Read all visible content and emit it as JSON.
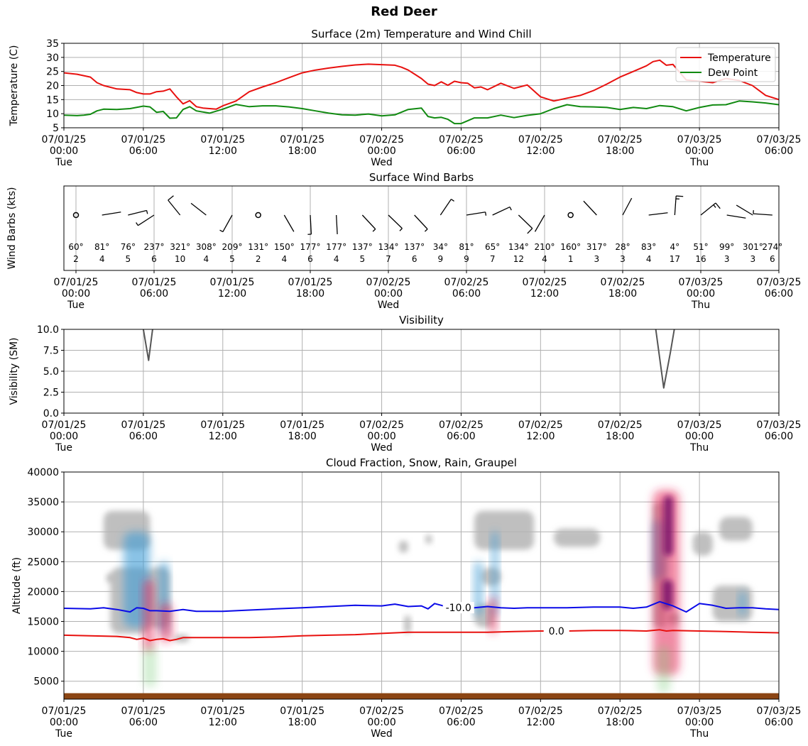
{
  "figure_title": "Red Deer",
  "time_ticks": [
    {
      "date": "07/01/25",
      "time": "00:00",
      "day": "Tue"
    },
    {
      "date": "07/01/25",
      "time": "06:00",
      "day": ""
    },
    {
      "date": "07/01/25",
      "time": "12:00",
      "day": ""
    },
    {
      "date": "07/01/25",
      "time": "18:00",
      "day": ""
    },
    {
      "date": "07/02/25",
      "time": "00:00",
      "day": "Wed"
    },
    {
      "date": "07/02/25",
      "time": "06:00",
      "day": ""
    },
    {
      "date": "07/02/25",
      "time": "12:00",
      "day": ""
    },
    {
      "date": "07/02/25",
      "time": "18:00",
      "day": ""
    },
    {
      "date": "07/03/25",
      "time": "00:00",
      "day": "Thu"
    },
    {
      "date": "07/03/25",
      "time": "06:00",
      "day": ""
    }
  ],
  "colors": {
    "temperature": "#e8110f",
    "dew_point": "#118a11",
    "visibility": "#555555",
    "grid": "#b0b0b0",
    "freezing_level": "#e8110f",
    "minus10_level": "#0a0ae8",
    "ground": "#8b4513",
    "cloud": "#b4b4b4",
    "snow": "#3a9bd6",
    "rain": "#e8265a",
    "graupel": "#7a0a6a"
  },
  "chart_data": [
    {
      "type": "line",
      "title": "Surface (2m) Temperature and Wind Chill",
      "ylabel": "Temperature (C)",
      "xlim_hours": [
        0,
        54
      ],
      "ylim": [
        5,
        35
      ],
      "yticks": [
        5,
        10,
        15,
        20,
        25,
        30,
        35
      ],
      "grid": true,
      "legend": "top-right",
      "series": [
        {
          "name": "Temperature",
          "color": "#e8110f",
          "x": [
            0,
            1,
            1.5,
            2,
            2.5,
            3,
            4,
            5,
            5.5,
            6,
            6.5,
            7,
            7.5,
            8,
            8.5,
            9,
            9.5,
            10,
            10.5,
            11,
            11.5,
            12,
            13,
            14,
            15,
            16,
            17,
            18,
            19,
            20,
            21,
            22,
            23,
            24,
            25,
            25.5,
            26,
            26.5,
            27,
            27.5,
            28,
            28.5,
            29,
            29.5,
            30,
            30.5,
            31,
            31.5,
            32,
            33,
            34,
            35,
            36,
            37,
            38,
            39,
            40,
            41,
            42,
            43,
            44,
            44.5,
            45,
            45.5,
            46,
            47,
            48,
            49,
            50,
            51,
            52,
            53,
            54
          ],
          "y": [
            24.5,
            24,
            23.5,
            23,
            21,
            20,
            18.8,
            18.5,
            17.5,
            17,
            17,
            17.8,
            18,
            18.8,
            16,
            13.5,
            14.6,
            12.5,
            12,
            11.8,
            11.6,
            12.8,
            14.5,
            17.8,
            19.5,
            21,
            22.8,
            24.5,
            25.5,
            26.2,
            26.8,
            27.3,
            27.6,
            27.4,
            27.2,
            26.5,
            25.5,
            24,
            22.5,
            20.5,
            20,
            21.3,
            20.1,
            21.5,
            21,
            20.8,
            19.2,
            19.5,
            18.5,
            20.8,
            19,
            20.2,
            16,
            14.5,
            15.5,
            16.5,
            18.2,
            20.5,
            23,
            25,
            27,
            28.5,
            29,
            27.2,
            27.5,
            22,
            21.5,
            21,
            22.5,
            21.8,
            20,
            16.5,
            15
          ]
        },
        {
          "name": "Dew Point",
          "color": "#118a11",
          "x": [
            0,
            1,
            1.5,
            2,
            2.5,
            3,
            4,
            5,
            6,
            6.5,
            7,
            7.5,
            8,
            8.5,
            9,
            9.5,
            10,
            11,
            12,
            13,
            14,
            15,
            16,
            17,
            18,
            19,
            20,
            21,
            22,
            23,
            24,
            25,
            26,
            27,
            27.5,
            28,
            28.5,
            29,
            29.5,
            30,
            30.5,
            31,
            32,
            33,
            34,
            35,
            36,
            37,
            38,
            39,
            40,
            41,
            42,
            43,
            44,
            45,
            46,
            47,
            48,
            49,
            50,
            51,
            52,
            53,
            54
          ],
          "y": [
            9.5,
            9.3,
            9.5,
            9.8,
            11,
            11.6,
            11.5,
            11.8,
            12.7,
            12.4,
            10.5,
            10.8,
            8.4,
            8.5,
            11.5,
            12.5,
            11,
            10.2,
            11.6,
            13.3,
            12.5,
            12.8,
            12.8,
            12.4,
            11.8,
            11,
            10.2,
            9.6,
            9.5,
            9.9,
            9.2,
            9.6,
            11.5,
            12,
            9,
            8.5,
            8.7,
            8,
            6.5,
            6.5,
            7.5,
            8.5,
            8.5,
            9.5,
            8.6,
            9.4,
            10,
            11.8,
            13.2,
            12.5,
            12.4,
            12.2,
            11.5,
            12.2,
            11.8,
            12.9,
            12.5,
            11,
            12.2,
            13.1,
            13.2,
            14.5,
            14.2,
            13.8,
            13.2
          ]
        }
      ]
    },
    {
      "type": "scatter",
      "title": "Surface Wind Barbs",
      "ylabel": "Wind Barbs (kts)",
      "xlim_hours": [
        0,
        54
      ],
      "grid": true,
      "direction_unit": "°",
      "x": [
        0,
        2,
        4,
        6,
        8,
        10,
        12,
        14,
        16,
        18,
        20,
        22,
        24,
        26,
        28,
        30,
        32,
        34,
        36,
        38,
        40,
        42,
        44,
        46,
        48,
        50,
        52
      ],
      "directions": [
        60,
        81,
        76,
        237,
        321,
        308,
        209,
        131,
        150,
        177,
        177,
        137,
        134,
        137,
        34,
        81,
        65,
        134,
        210,
        160,
        317,
        28,
        83,
        4,
        51,
        99,
        301
      ],
      "speeds": [
        2,
        4,
        5,
        6,
        10,
        4,
        5,
        2,
        4,
        6,
        4,
        5,
        7,
        6,
        9,
        9,
        7,
        12,
        4,
        1,
        3,
        3,
        4,
        17,
        16,
        3,
        3
      ],
      "last_direction": 274,
      "last_speed": 6
    },
    {
      "type": "line",
      "title": "Visibility",
      "ylabel": "Visibility (SM)",
      "xlim_hours": [
        0,
        54
      ],
      "ylim": [
        0,
        10
      ],
      "yticks": [
        0,
        2.5,
        5,
        7.5,
        10
      ],
      "yticklabels": [
        "0.0",
        "2.5",
        "5.0",
        "7.5",
        "10.0"
      ],
      "grid": true,
      "series": [
        {
          "name": "",
          "color": "#555555",
          "x": [
            6,
            6.4,
            6.7
          ],
          "y": [
            10,
            6.3,
            10
          ]
        },
        {
          "name": "",
          "color": "#555555",
          "x": [
            44.7,
            45.3,
            45.8,
            46.1
          ],
          "y": [
            10,
            3,
            7.2,
            10
          ]
        }
      ]
    },
    {
      "type": "area",
      "title": "Cloud Fraction, Snow, Rain, Graupel",
      "ylabel": "Altitude (ft)",
      "xlim_hours": [
        0,
        54
      ],
      "ylim": [
        2000,
        40000
      ],
      "yticks": [
        5000,
        10000,
        15000,
        20000,
        25000,
        30000,
        35000,
        40000
      ],
      "grid": true,
      "freezing_level": {
        "label": "0.0",
        "x": [
          0,
          2,
          4,
          5,
          5.5,
          6,
          6.5,
          7,
          7.5,
          8,
          8.5,
          9,
          10,
          12,
          14,
          16,
          18,
          20,
          22,
          24,
          26,
          28,
          30,
          32,
          34,
          36,
          38,
          40,
          42,
          44,
          45,
          45.5,
          46,
          48,
          50,
          52,
          54
        ],
        "y": [
          12700,
          12600,
          12500,
          12300,
          12000,
          12200,
          11800,
          12000,
          12100,
          11800,
          12000,
          12300,
          12300,
          12300,
          12300,
          12400,
          12600,
          12700,
          12800,
          13000,
          13200,
          13200,
          13200,
          13200,
          13300,
          13400,
          13400,
          13500,
          13500,
          13400,
          13600,
          13400,
          13500,
          13400,
          13300,
          13200,
          13100
        ]
      },
      "minus10_level": {
        "label": "-10.0",
        "x": [
          0,
          2,
          3,
          4,
          4.5,
          5,
          5.5,
          6,
          6.5,
          7,
          8,
          9,
          10,
          12,
          14,
          16,
          18,
          20,
          22,
          24,
          25,
          26,
          27,
          27.5,
          28,
          29,
          30,
          31,
          32,
          33,
          34,
          35,
          36,
          38,
          40,
          42,
          43,
          44,
          45,
          46,
          47,
          48,
          49,
          50,
          51,
          52,
          53,
          54
        ],
        "y": [
          17200,
          17100,
          17300,
          17000,
          16800,
          16600,
          17300,
          17200,
          16800,
          16800,
          16700,
          17000,
          16700,
          16700,
          16900,
          17100,
          17300,
          17500,
          17700,
          17600,
          17900,
          17500,
          17600,
          17100,
          18000,
          17400,
          17200,
          17300,
          17500,
          17300,
          17200,
          17300,
          17300,
          17300,
          17400,
          17400,
          17200,
          17400,
          18300,
          17600,
          16600,
          18000,
          17700,
          17200,
          17300,
          17300,
          17100,
          17000
        ]
      },
      "cloud_regions": [
        {
          "x": [
            3,
            6.5
          ],
          "y": [
            27000,
            33500
          ]
        },
        {
          "x": [
            3.5,
            6.5
          ],
          "y": [
            13000,
            24000
          ]
        },
        {
          "x": [
            6.2,
            8
          ],
          "y": [
            14000,
            24000
          ]
        },
        {
          "x": [
            8.3,
            9.5
          ],
          "y": [
            11500,
            12800
          ]
        },
        {
          "x": [
            3.2,
            3.8
          ],
          "y": [
            21500,
            23000
          ]
        },
        {
          "x": [
            25.3,
            26
          ],
          "y": [
            26500,
            28500
          ]
        },
        {
          "x": [
            27.3,
            27.8
          ],
          "y": [
            28000,
            29500
          ]
        },
        {
          "x": [
            25.7,
            26.2
          ],
          "y": [
            13000,
            16000
          ]
        },
        {
          "x": [
            31,
            35.5
          ],
          "y": [
            27000,
            33500
          ]
        },
        {
          "x": [
            37,
            40.5
          ],
          "y": [
            27500,
            30500
          ]
        },
        {
          "x": [
            31,
            32.5
          ],
          "y": [
            14000,
            18000
          ]
        },
        {
          "x": [
            31.5,
            33
          ],
          "y": [
            21000,
            24000
          ]
        },
        {
          "x": [
            44.5,
            45.5
          ],
          "y": [
            14000,
            35000
          ]
        },
        {
          "x": [
            47.5,
            49
          ],
          "y": [
            26000,
            30000
          ]
        },
        {
          "x": [
            49,
            52
          ],
          "y": [
            15000,
            21000
          ]
        },
        {
          "x": [
            49.5,
            52
          ],
          "y": [
            28500,
            32500
          ]
        },
        {
          "x": [
            45.5,
            46.5
          ],
          "y": [
            14500,
            16500
          ]
        }
      ],
      "snow_regions": [
        {
          "x": [
            4.5,
            6.5
          ],
          "y": [
            14000,
            30000
          ]
        },
        {
          "x": [
            7.2,
            7.9
          ],
          "y": [
            13000,
            25000
          ]
        },
        {
          "x": [
            31,
            31.6
          ],
          "y": [
            16000,
            25000
          ]
        },
        {
          "x": [
            32.3,
            32.8
          ],
          "y": [
            16000,
            30000
          ]
        },
        {
          "x": [
            44.5,
            45.5
          ],
          "y": [
            22000,
            32000
          ]
        },
        {
          "x": [
            51,
            51.5
          ],
          "y": [
            16000,
            20000
          ]
        }
      ],
      "rain_regions": [
        {
          "x": [
            6,
            6.8
          ],
          "y": [
            10000,
            22000
          ]
        },
        {
          "x": [
            7.2,
            8.2
          ],
          "y": [
            11500,
            18000
          ]
        },
        {
          "x": [
            44.5,
            46.5
          ],
          "y": [
            6000,
            37000
          ]
        },
        {
          "x": [
            32.1,
            32.7
          ],
          "y": [
            13000,
            19000
          ]
        }
      ],
      "graupel_regions": [
        {
          "x": [
            45.3,
            46
          ],
          "y": [
            26000,
            36000
          ]
        },
        {
          "x": [
            45.2,
            46
          ],
          "y": [
            17000,
            22000
          ]
        }
      ],
      "ground_level": 2000,
      "ground_top": 3000
    }
  ]
}
